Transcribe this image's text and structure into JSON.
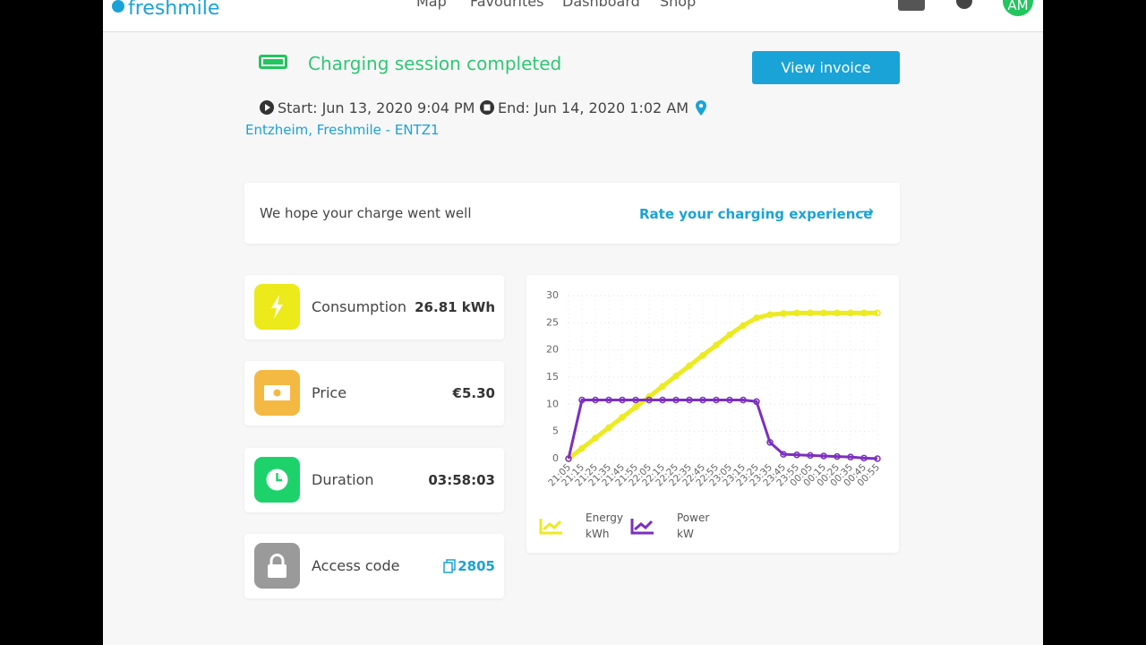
{
  "header": {
    "logo": "freshmile",
    "nav": [
      "Map",
      "Favourites",
      "Dashboard",
      "Shop"
    ],
    "avatar": "AM"
  },
  "session": {
    "status": "Charging session completed",
    "invoice_button": "View invoice",
    "start": "Start: Jun 13, 2020 9:04 PM",
    "end": "End: Jun 14, 2020 1:02 AM",
    "location": "Entzheim, Freshmile - ENTZ1"
  },
  "feedback": {
    "text": "We hope your charge went well",
    "link": "Rate your charging experience"
  },
  "stats": [
    {
      "label": "Consumption",
      "value": "26.81 kWh"
    },
    {
      "label": "Price",
      "value": "€5.30"
    },
    {
      "label": "Duration",
      "value": "03:58:03"
    },
    {
      "label": "Access code",
      "value": "2805"
    }
  ],
  "chart_data": {
    "type": "line",
    "categories": [
      "21:05",
      "21:15",
      "21:25",
      "21:35",
      "21:45",
      "21:55",
      "22:05",
      "22:15",
      "22:25",
      "22:35",
      "22:45",
      "22:55",
      "23:05",
      "23:15",
      "23:25",
      "23:35",
      "23:45",
      "23:55",
      "00:05",
      "00:15",
      "00:25",
      "00:35",
      "00:45",
      "00:55"
    ],
    "series": [
      {
        "name": "Energy",
        "unit": "kWh",
        "color": "#ecea22",
        "values": [
          0,
          1.9,
          3.8,
          5.7,
          7.6,
          9.5,
          11.4,
          13.3,
          15.2,
          17.1,
          19,
          20.9,
          22.8,
          24.5,
          25.9,
          26.5,
          26.7,
          26.8,
          26.8,
          26.8,
          26.8,
          26.8,
          26.8,
          26.81
        ]
      },
      {
        "name": "Power",
        "unit": "kW",
        "color": "#7b2fbf",
        "values": [
          0,
          10.8,
          10.8,
          10.8,
          10.8,
          10.8,
          10.8,
          10.8,
          10.8,
          10.8,
          10.8,
          10.8,
          10.8,
          10.8,
          10.5,
          3,
          0.8,
          0.7,
          0.6,
          0.5,
          0.4,
          0.3,
          0.1,
          0
        ]
      }
    ],
    "ylim": [
      0,
      30
    ],
    "yticks": [
      0,
      5,
      10,
      15,
      20,
      25,
      30
    ],
    "grid": true
  }
}
